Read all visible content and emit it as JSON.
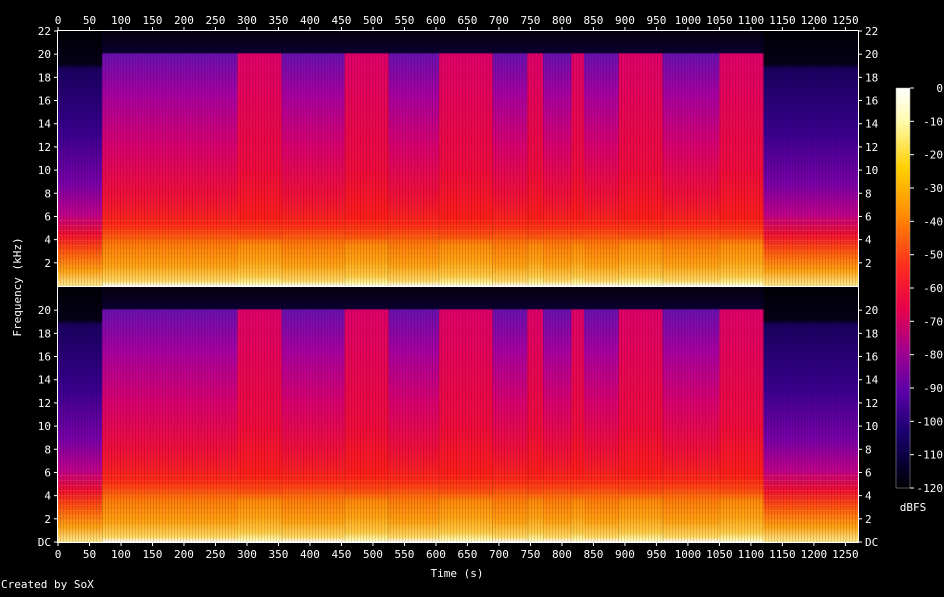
{
  "chart_data": {
    "type": "heatmap",
    "xlabel": "Time (s)",
    "ylabel": "Frequency (kHz)",
    "x_ticks": [
      0,
      50,
      100,
      150,
      200,
      250,
      300,
      350,
      400,
      450,
      500,
      550,
      600,
      650,
      700,
      750,
      800,
      850,
      900,
      950,
      1000,
      1050,
      1100,
      1150,
      1200,
      1250
    ],
    "x_range": [
      0,
      1270
    ],
    "y_range_khz": [
      0,
      22
    ],
    "channels": [
      {
        "y_tick_labels": [
          "22",
          "20",
          "18",
          "16",
          "14",
          "12",
          "10",
          "8",
          "6",
          "4",
          "2"
        ],
        "y_tick_values": [
          22,
          20,
          18,
          16,
          14,
          12,
          10,
          8,
          6,
          4,
          2
        ]
      },
      {
        "y_tick_labels": [
          "20",
          "18",
          "16",
          "14",
          "12",
          "10",
          "8",
          "6",
          "4",
          "2",
          "DC"
        ],
        "y_tick_values": [
          20,
          18,
          16,
          14,
          12,
          10,
          8,
          6,
          4,
          2,
          0
        ]
      }
    ],
    "colorbar": {
      "label": "dBFS",
      "ticks": [
        "0",
        "-10",
        "-20",
        "-30",
        "-40",
        "-50",
        "-60",
        "-70",
        "-80",
        "-90",
        "-100",
        "-110",
        "-120"
      ],
      "range": [
        -120,
        0
      ]
    },
    "segments_time_s": [
      {
        "start": 0,
        "end": 70,
        "level": "quiet",
        "cutoff_khz": 19
      },
      {
        "start": 70,
        "end": 285,
        "level": "mid",
        "cutoff_khz": 20
      },
      {
        "start": 285,
        "end": 355,
        "level": "loud",
        "cutoff_khz": 20
      },
      {
        "start": 355,
        "end": 455,
        "level": "mid",
        "cutoff_khz": 20
      },
      {
        "start": 455,
        "end": 525,
        "level": "loud",
        "cutoff_khz": 20
      },
      {
        "start": 525,
        "end": 605,
        "level": "mid",
        "cutoff_khz": 20
      },
      {
        "start": 605,
        "end": 690,
        "level": "loud",
        "cutoff_khz": 20
      },
      {
        "start": 690,
        "end": 745,
        "level": "mid",
        "cutoff_khz": 20
      },
      {
        "start": 745,
        "end": 770,
        "level": "loud",
        "cutoff_khz": 20
      },
      {
        "start": 770,
        "end": 815,
        "level": "mid",
        "cutoff_khz": 20
      },
      {
        "start": 815,
        "end": 835,
        "level": "loud",
        "cutoff_khz": 20
      },
      {
        "start": 835,
        "end": 890,
        "level": "mid",
        "cutoff_khz": 20
      },
      {
        "start": 890,
        "end": 960,
        "level": "loud",
        "cutoff_khz": 20
      },
      {
        "start": 960,
        "end": 1050,
        "level": "mid",
        "cutoff_khz": 20
      },
      {
        "start": 1050,
        "end": 1120,
        "level": "loud",
        "cutoff_khz": 20
      },
      {
        "start": 1120,
        "end": 1270,
        "level": "quiet",
        "cutoff_khz": 19
      }
    ]
  },
  "footer": {
    "credit": "Created by SoX"
  }
}
